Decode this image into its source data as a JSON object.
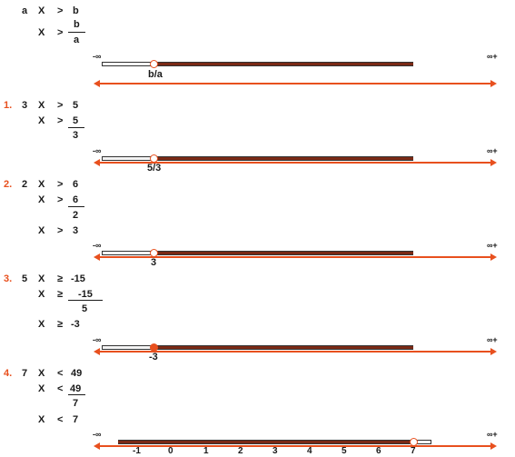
{
  "intro": {
    "line1": {
      "a": "a",
      "x": "X",
      "op": ">",
      "rhs": "b"
    },
    "line2": {
      "x": "X",
      "op": ">",
      "num": "b",
      "den": "a"
    },
    "bound_label": "b/a",
    "neg_inf": "-∞",
    "pos_inf": "∞+"
  },
  "ex1": {
    "n": "1.",
    "line1": {
      "coef": "3",
      "x": "X",
      "op": ">",
      "rhs": "5"
    },
    "line2": {
      "x": "X",
      "op": ">",
      "num": "5",
      "den": "3"
    },
    "bound_label": "5/3",
    "neg_inf": "-∞",
    "pos_inf": "∞+"
  },
  "ex2": {
    "n": "2.",
    "line1": {
      "coef": "2",
      "x": "X",
      "op": ">",
      "rhs": "6"
    },
    "line2": {
      "x": "X",
      "op": ">",
      "num": "6",
      "den": "2"
    },
    "line3": {
      "x": "X",
      "op": ">",
      "rhs": "3"
    },
    "bound_label": "3",
    "neg_inf": "-∞",
    "pos_inf": "∞+"
  },
  "ex3": {
    "n": "3.",
    "line1": {
      "coef": "5",
      "x": "X",
      "op": "≥",
      "rhs": "-15"
    },
    "line2": {
      "x": "X",
      "op": "≥",
      "num": "-15",
      "den": "5"
    },
    "line3": {
      "x": "X",
      "op": "≥",
      "rhs": "-3"
    },
    "bound_label": "-3",
    "neg_inf": "-∞",
    "pos_inf": "∞+"
  },
  "ex4": {
    "n": "4.",
    "line1": {
      "coef": "7",
      "x": "X",
      "op": "<",
      "rhs": "49"
    },
    "line2": {
      "x": "X",
      "op": "<",
      "num": "49",
      "den": "7"
    },
    "line3": {
      "x": "X",
      "op": "<",
      "rhs": "7"
    },
    "neg_inf": "-∞",
    "pos_inf": "∞+",
    "ticks": [
      "-1",
      "0",
      "1",
      "2",
      "3",
      "4",
      "5",
      "6",
      "7"
    ]
  },
  "colors": {
    "accent": "#e8501e",
    "fill": "#7a2a16"
  }
}
